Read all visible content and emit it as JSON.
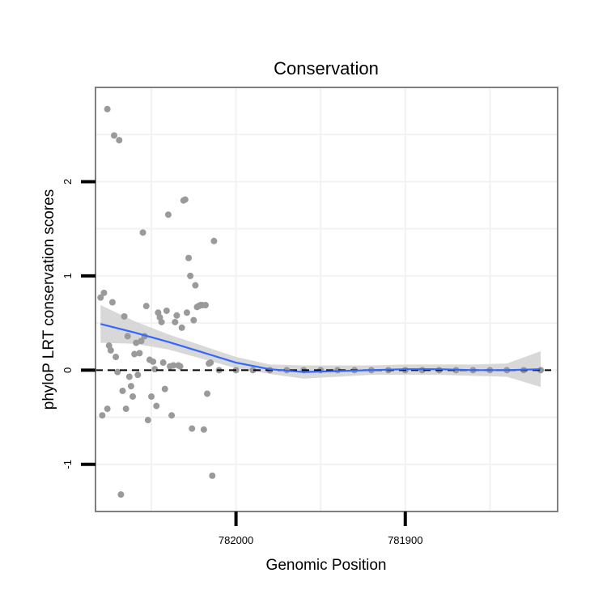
{
  "chart_data": {
    "type": "scatter",
    "title": "Conservation",
    "xlabel": "Genomic Position",
    "ylabel": "phyloP LRT conservation scores",
    "x_reversed": true,
    "xlim": [
      782083,
      781810
    ],
    "ylim": [
      -1.5,
      3.0
    ],
    "x_ticks": [
      782000,
      781900
    ],
    "y_ticks": [
      -1,
      0,
      1,
      2
    ],
    "grid": true,
    "reference_line": {
      "y": 0,
      "style": "dashed",
      "color": "#000000"
    },
    "colors": {
      "points": "#9a9a9a",
      "smooth_line": "#3366ff",
      "confidence_band": "#d4d4d4",
      "border": "#7f7f7f"
    },
    "points": [
      {
        "x": 782080,
        "y": 0.77
      },
      {
        "x": 782078,
        "y": 0.82
      },
      {
        "x": 782079,
        "y": -0.48
      },
      {
        "x": 782076,
        "y": 2.77
      },
      {
        "x": 782076,
        "y": -0.41
      },
      {
        "x": 782075,
        "y": 0.26
      },
      {
        "x": 782074,
        "y": 0.21
      },
      {
        "x": 782073,
        "y": 0.72
      },
      {
        "x": 782072,
        "y": 2.49
      },
      {
        "x": 782071,
        "y": 0.14
      },
      {
        "x": 782070,
        "y": -0.02
      },
      {
        "x": 782069,
        "y": 2.44
      },
      {
        "x": 782068,
        "y": -1.32
      },
      {
        "x": 782067,
        "y": -0.22
      },
      {
        "x": 782066,
        "y": 0.57
      },
      {
        "x": 782065,
        "y": -0.41
      },
      {
        "x": 782064,
        "y": 0.36
      },
      {
        "x": 782063,
        "y": -0.07
      },
      {
        "x": 782062,
        "y": -0.17
      },
      {
        "x": 782061,
        "y": -0.28
      },
      {
        "x": 782060,
        "y": 0.17
      },
      {
        "x": 782059,
        "y": 0.29
      },
      {
        "x": 782058,
        "y": -0.05
      },
      {
        "x": 782057,
        "y": 0.18
      },
      {
        "x": 782056,
        "y": 0.31
      },
      {
        "x": 782055,
        "y": 1.46
      },
      {
        "x": 782054,
        "y": 0.36
      },
      {
        "x": 782053,
        "y": 0.68
      },
      {
        "x": 782052,
        "y": -0.53
      },
      {
        "x": 782051,
        "y": 0.11
      },
      {
        "x": 782050,
        "y": -0.28
      },
      {
        "x": 782049,
        "y": 0.09
      },
      {
        "x": 782048,
        "y": 0.01
      },
      {
        "x": 782047,
        "y": -0.38
      },
      {
        "x": 782046,
        "y": 0.61
      },
      {
        "x": 782045,
        "y": 0.56
      },
      {
        "x": 782044,
        "y": 0.51
      },
      {
        "x": 782043,
        "y": 0.08
      },
      {
        "x": 782042,
        "y": -0.2
      },
      {
        "x": 782041,
        "y": 0.63
      },
      {
        "x": 782040,
        "y": 1.65
      },
      {
        "x": 782039,
        "y": 0.04
      },
      {
        "x": 782038,
        "y": -0.48
      },
      {
        "x": 782037,
        "y": 0.05
      },
      {
        "x": 782036,
        "y": 0.51
      },
      {
        "x": 782035,
        "y": 0.58
      },
      {
        "x": 782034,
        "y": 0.05
      },
      {
        "x": 782033,
        "y": 0.04
      },
      {
        "x": 782032,
        "y": 0.45
      },
      {
        "x": 782031,
        "y": 1.8
      },
      {
        "x": 782030,
        "y": 1.81
      },
      {
        "x": 782029,
        "y": 0.61
      },
      {
        "x": 782028,
        "y": 1.19
      },
      {
        "x": 782027,
        "y": 1.0
      },
      {
        "x": 782026,
        "y": -0.62
      },
      {
        "x": 782025,
        "y": 0.53
      },
      {
        "x": 782024,
        "y": 0.9
      },
      {
        "x": 782023,
        "y": 0.67
      },
      {
        "x": 782022,
        "y": 0.68
      },
      {
        "x": 782021,
        "y": 0.69
      },
      {
        "x": 782020,
        "y": 0.69
      },
      {
        "x": 782019,
        "y": -0.63
      },
      {
        "x": 782018,
        "y": 0.69
      },
      {
        "x": 782017,
        "y": -0.25
      },
      {
        "x": 782016,
        "y": 0.07
      },
      {
        "x": 782015,
        "y": 0.08
      },
      {
        "x": 782014,
        "y": -1.12
      },
      {
        "x": 782013,
        "y": 1.37
      },
      {
        "x": 782010,
        "y": 0.0
      },
      {
        "x": 782000,
        "y": 0.0
      },
      {
        "x": 781990,
        "y": 0.0
      },
      {
        "x": 781980,
        "y": 0.0
      },
      {
        "x": 781970,
        "y": 0.0
      },
      {
        "x": 781960,
        "y": 0.0
      },
      {
        "x": 781950,
        "y": 0.0
      },
      {
        "x": 781940,
        "y": 0.0
      },
      {
        "x": 781930,
        "y": 0.0
      },
      {
        "x": 781920,
        "y": 0.0
      },
      {
        "x": 781910,
        "y": 0.0
      },
      {
        "x": 781900,
        "y": 0.0
      },
      {
        "x": 781890,
        "y": 0.0
      },
      {
        "x": 781880,
        "y": 0.0
      },
      {
        "x": 781870,
        "y": 0.0
      },
      {
        "x": 781860,
        "y": 0.0
      },
      {
        "x": 781850,
        "y": 0.0
      },
      {
        "x": 781840,
        "y": 0.0
      },
      {
        "x": 781830,
        "y": 0.0
      },
      {
        "x": 781820,
        "y": 0.0
      }
    ],
    "smooth": {
      "method": "loess",
      "x": [
        782080,
        782060,
        782040,
        782020,
        782000,
        781980,
        781960,
        781940,
        781920,
        781900,
        781880,
        781860,
        781840,
        781820
      ],
      "y": [
        0.49,
        0.4,
        0.3,
        0.19,
        0.08,
        0.01,
        -0.02,
        -0.01,
        0.0,
        0.01,
        0.01,
        0.0,
        0.0,
        0.01
      ],
      "lower": [
        0.29,
        0.28,
        0.22,
        0.12,
        0.02,
        -0.04,
        -0.09,
        -0.07,
        -0.05,
        -0.05,
        -0.05,
        -0.06,
        -0.07,
        -0.18
      ],
      "upper": [
        0.69,
        0.52,
        0.38,
        0.26,
        0.14,
        0.06,
        0.05,
        0.05,
        0.05,
        0.06,
        0.06,
        0.06,
        0.07,
        0.2
      ]
    }
  }
}
